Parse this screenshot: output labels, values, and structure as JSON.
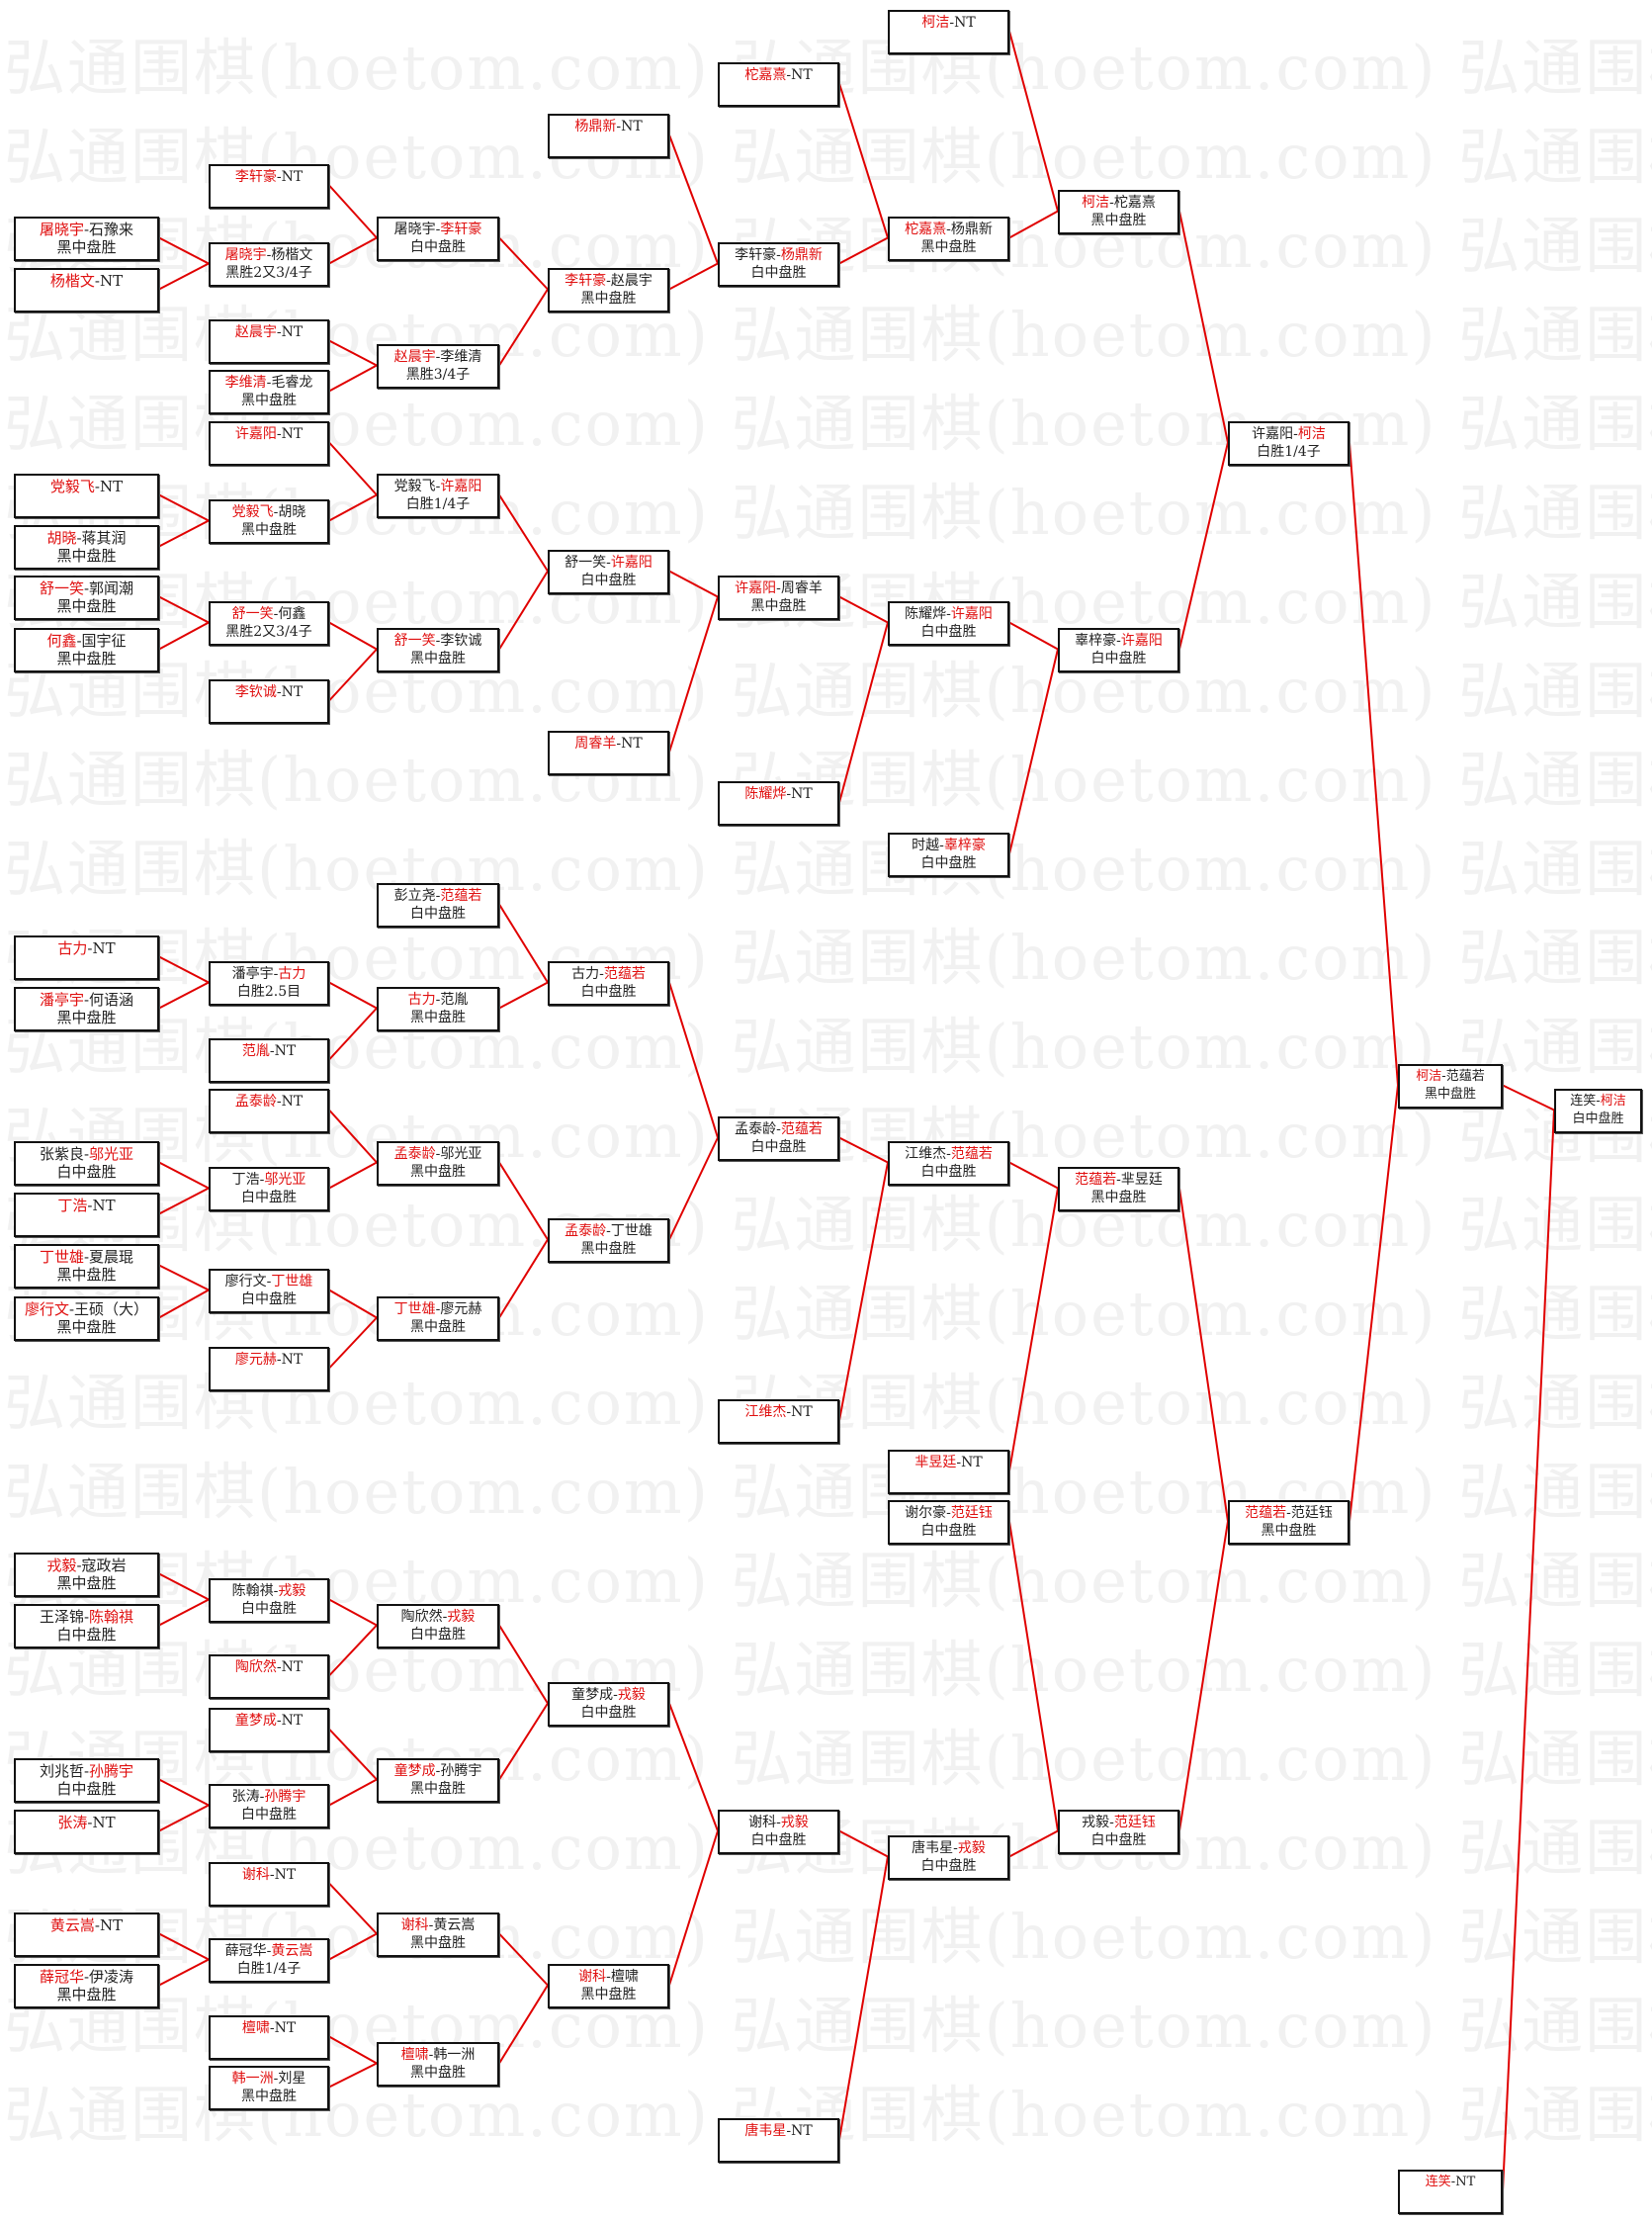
{
  "watermark": "弘通围棋(hoetom.com)",
  "colors": {
    "winner": "#e01010",
    "connector": "#e00000",
    "border": "#111111"
  },
  "matches": [
    {
      "p1": "屠晓宇",
      "p2": "石豫来",
      "winner": 1,
      "result": "黑中盘胜"
    },
    {
      "p1": "杨楷文",
      "p2": "NT",
      "winner": 1,
      "result": ""
    },
    {
      "p1": "党毅飞",
      "p2": "NT",
      "winner": 1,
      "result": ""
    },
    {
      "p1": "胡晓",
      "p2": "蒋其润",
      "winner": 1,
      "result": "黑中盘胜"
    },
    {
      "p1": "舒一笑",
      "p2": "郭闻潮",
      "winner": 1,
      "result": "黑中盘胜"
    },
    {
      "p1": "何鑫",
      "p2": "国宇征",
      "winner": 1,
      "result": "黑中盘胜"
    },
    {
      "p1": "古力",
      "p2": "NT",
      "winner": 1,
      "result": ""
    },
    {
      "p1": "潘亭宇",
      "p2": "何语涵",
      "winner": 1,
      "result": "黑中盘胜"
    },
    {
      "p1": "张紫良",
      "p2": "邬光亚",
      "winner": 2,
      "result": "白中盘胜"
    },
    {
      "p1": "丁浩",
      "p2": "NT",
      "winner": 1,
      "result": ""
    },
    {
      "p1": "丁世雄",
      "p2": "夏晨琨",
      "winner": 1,
      "result": "黑中盘胜"
    },
    {
      "p1": "廖行文",
      "p2": "王硕（大）",
      "winner": 1,
      "result": "黑中盘胜"
    },
    {
      "p1": "戎毅",
      "p2": "寇政岩",
      "winner": 1,
      "result": "黑中盘胜"
    },
    {
      "p1": "王泽锦",
      "p2": "陈翰祺",
      "winner": 2,
      "result": "白中盘胜"
    },
    {
      "p1": "刘兆哲",
      "p2": "孙腾宇",
      "winner": 2,
      "result": "白中盘胜"
    },
    {
      "p1": "张涛",
      "p2": "NT",
      "winner": 1,
      "result": ""
    },
    {
      "p1": "黄云嵩",
      "p2": "NT",
      "winner": 1,
      "result": ""
    },
    {
      "p1": "薛冠华",
      "p2": "伊凌涛",
      "winner": 1,
      "result": "黑中盘胜"
    },
    {
      "p1": "李轩豪",
      "p2": "NT",
      "winner": 1,
      "result": ""
    },
    {
      "p1": "屠晓宇",
      "p2": "杨楷文",
      "winner": 1,
      "result": "黑胜2又3/4子"
    },
    {
      "p1": "赵晨宇",
      "p2": "NT",
      "winner": 1,
      "result": ""
    },
    {
      "p1": "李维清",
      "p2": "毛睿龙",
      "winner": 1,
      "result": "黑中盘胜"
    },
    {
      "p1": "许嘉阳",
      "p2": "NT",
      "winner": 1,
      "result": ""
    },
    {
      "p1": "党毅飞",
      "p2": "胡晓",
      "winner": 1,
      "result": "黑中盘胜"
    },
    {
      "p1": "舒一笑",
      "p2": "何鑫",
      "winner": 1,
      "result": "黑胜2又3/4子"
    },
    {
      "p1": "李钦诚",
      "p2": "NT",
      "winner": 1,
      "result": ""
    },
    {
      "p1": "潘亭宇",
      "p2": "古力",
      "winner": 2,
      "result": "白胜2.5目"
    },
    {
      "p1": "范胤",
      "p2": "NT",
      "winner": 1,
      "result": ""
    },
    {
      "p1": "孟泰龄",
      "p2": "NT",
      "winner": 1,
      "result": ""
    },
    {
      "p1": "丁浩",
      "p2": "邬光亚",
      "winner": 2,
      "result": "白中盘胜"
    },
    {
      "p1": "廖行文",
      "p2": "丁世雄",
      "winner": 2,
      "result": "白中盘胜"
    },
    {
      "p1": "廖元赫",
      "p2": "NT",
      "winner": 1,
      "result": ""
    },
    {
      "p1": "陈翰祺",
      "p2": "戎毅",
      "winner": 2,
      "result": "白中盘胜"
    },
    {
      "p1": "陶欣然",
      "p2": "NT",
      "winner": 1,
      "result": ""
    },
    {
      "p1": "童梦成",
      "p2": "NT",
      "winner": 1,
      "result": ""
    },
    {
      "p1": "张涛",
      "p2": "孙腾宇",
      "winner": 2,
      "result": "白中盘胜"
    },
    {
      "p1": "谢科",
      "p2": "NT",
      "winner": 1,
      "result": ""
    },
    {
      "p1": "薛冠华",
      "p2": "黄云嵩",
      "winner": 2,
      "result": "白胜1/4子"
    },
    {
      "p1": "檀啸",
      "p2": "NT",
      "winner": 1,
      "result": ""
    },
    {
      "p1": "韩一洲",
      "p2": "刘星",
      "winner": 1,
      "result": "黑中盘胜"
    },
    {
      "p1": "屠晓宇",
      "p2": "李轩豪",
      "winner": 2,
      "result": "白中盘胜"
    },
    {
      "p1": "赵晨宇",
      "p2": "李维清",
      "winner": 1,
      "result": "黑胜3/4子"
    },
    {
      "p1": "党毅飞",
      "p2": "许嘉阳",
      "winner": 2,
      "result": "白胜1/4子"
    },
    {
      "p1": "舒一笑",
      "p2": "李钦诚",
      "winner": 1,
      "result": "黑中盘胜"
    },
    {
      "p1": "彭立尧",
      "p2": "范蕴若",
      "winner": 2,
      "result": "白中盘胜"
    },
    {
      "p1": "古力",
      "p2": "范胤",
      "winner": 1,
      "result": "黑中盘胜"
    },
    {
      "p1": "孟泰龄",
      "p2": "邬光亚",
      "winner": 1,
      "result": "黑中盘胜"
    },
    {
      "p1": "丁世雄",
      "p2": "廖元赫",
      "winner": 1,
      "result": "黑中盘胜"
    },
    {
      "p1": "陶欣然",
      "p2": "戎毅",
      "winner": 2,
      "result": "白中盘胜"
    },
    {
      "p1": "童梦成",
      "p2": "孙腾宇",
      "winner": 1,
      "result": "黑中盘胜"
    },
    {
      "p1": "谢科",
      "p2": "黄云嵩",
      "winner": 1,
      "result": "黑中盘胜"
    },
    {
      "p1": "檀啸",
      "p2": "韩一洲",
      "winner": 1,
      "result": "黑中盘胜"
    },
    {
      "p1": "杨鼎新",
      "p2": "NT",
      "winner": 1,
      "result": ""
    },
    {
      "p1": "李轩豪",
      "p2": "赵晨宇",
      "winner": 1,
      "result": "黑中盘胜"
    },
    {
      "p1": "舒一笑",
      "p2": "许嘉阳",
      "winner": 2,
      "result": "白中盘胜"
    },
    {
      "p1": "周睿羊",
      "p2": "NT",
      "winner": 1,
      "result": ""
    },
    {
      "p1": "古力",
      "p2": "范蕴若",
      "winner": 2,
      "result": "白中盘胜"
    },
    {
      "p1": "孟泰龄",
      "p2": "丁世雄",
      "winner": 1,
      "result": "黑中盘胜"
    },
    {
      "p1": "童梦成",
      "p2": "戎毅",
      "winner": 2,
      "result": "白中盘胜"
    },
    {
      "p1": "谢科",
      "p2": "檀啸",
      "winner": 1,
      "result": "黑中盘胜"
    },
    {
      "p1": "柁嘉熹",
      "p2": "NT",
      "winner": 1,
      "result": ""
    },
    {
      "p1": "李轩豪",
      "p2": "杨鼎新",
      "winner": 2,
      "result": "白中盘胜"
    },
    {
      "p1": "许嘉阳",
      "p2": "周睿羊",
      "winner": 1,
      "result": "黑中盘胜"
    },
    {
      "p1": "陈耀烨",
      "p2": "NT",
      "winner": 1,
      "result": ""
    },
    {
      "p1": "孟泰龄",
      "p2": "范蕴若",
      "winner": 2,
      "result": "白中盘胜"
    },
    {
      "p1": "江维杰",
      "p2": "NT",
      "winner": 1,
      "result": ""
    },
    {
      "p1": "谢科",
      "p2": "戎毅",
      "winner": 2,
      "result": "白中盘胜"
    },
    {
      "p1": "唐韦星",
      "p2": "NT",
      "winner": 1,
      "result": ""
    },
    {
      "p1": "柯洁",
      "p2": "NT",
      "winner": 1,
      "result": ""
    },
    {
      "p1": "柁嘉熹",
      "p2": "杨鼎新",
      "winner": 1,
      "result": "黑中盘胜"
    },
    {
      "p1": "陈耀烨",
      "p2": "许嘉阳",
      "winner": 2,
      "result": "白中盘胜"
    },
    {
      "p1": "时越",
      "p2": "辜梓豪",
      "winner": 2,
      "result": "白中盘胜"
    },
    {
      "p1": "江维杰",
      "p2": "范蕴若",
      "winner": 2,
      "result": "白中盘胜"
    },
    {
      "p1": "芈昱廷",
      "p2": "NT",
      "winner": 1,
      "result": ""
    },
    {
      "p1": "谢尔豪",
      "p2": "范廷钰",
      "winner": 2,
      "result": "白中盘胜"
    },
    {
      "p1": "唐韦星",
      "p2": "戎毅",
      "winner": 2,
      "result": "白中盘胜"
    },
    {
      "p1": "柯洁",
      "p2": "柁嘉熹",
      "winner": 1,
      "result": "黑中盘胜"
    },
    {
      "p1": "辜梓豪",
      "p2": "许嘉阳",
      "winner": 2,
      "result": "白中盘胜"
    },
    {
      "p1": "范蕴若",
      "p2": "芈昱廷",
      "winner": 1,
      "result": "黑中盘胜"
    },
    {
      "p1": "戎毅",
      "p2": "范廷钰",
      "winner": 2,
      "result": "白中盘胜"
    },
    {
      "p1": "许嘉阳",
      "p2": "柯洁",
      "winner": 2,
      "result": "白胜1/4子"
    },
    {
      "p1": "范蕴若",
      "p2": "范廷钰",
      "winner": 1,
      "result": "黑中盘胜"
    },
    {
      "p1": "柯洁",
      "p2": "范蕴若",
      "winner": 1,
      "result": "黑中盘胜"
    },
    {
      "p1": "连笑",
      "p2": "NT",
      "winner": 1,
      "result": ""
    },
    {
      "p1": "连笑",
      "p2": "柯洁",
      "winner": 2,
      "result": "白中盘胜"
    }
  ]
}
